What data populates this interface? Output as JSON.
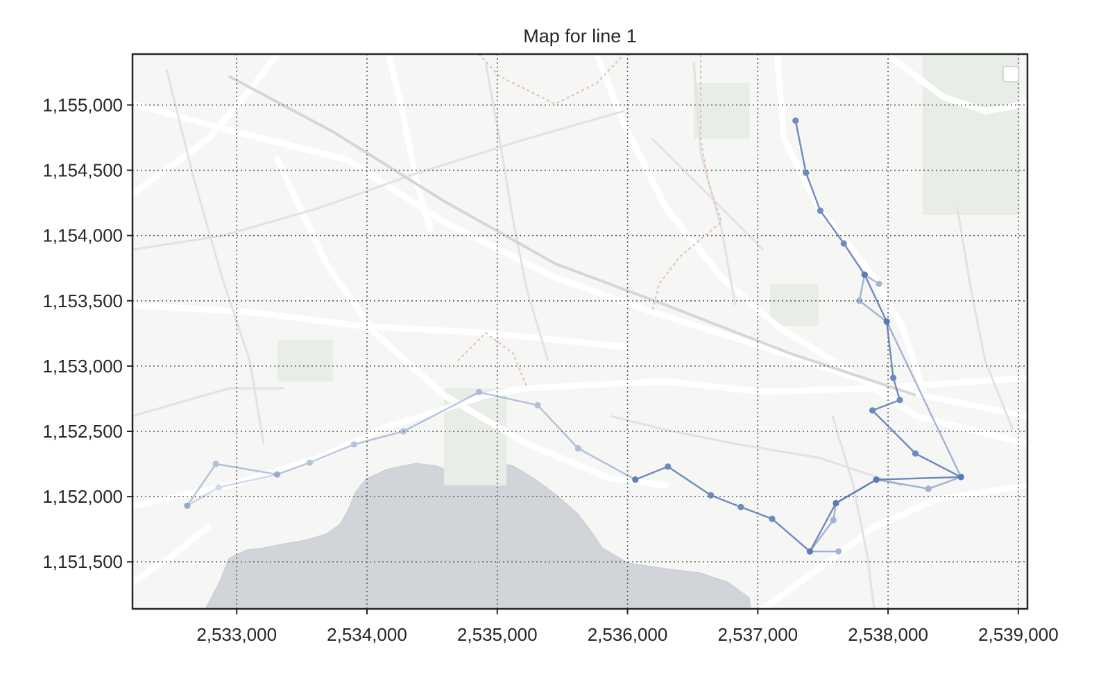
{
  "chart_data": {
    "type": "line",
    "title": "Map for line 1",
    "xlabel": "",
    "ylabel": "",
    "xlim": [
      2532200,
      2539070
    ],
    "ylim": [
      1151140,
      1155390
    ],
    "x_ticks": [
      2533000,
      2534000,
      2535000,
      2536000,
      2537000,
      2538000,
      2539000
    ],
    "x_tick_labels": [
      "2,533,000",
      "2,534,000",
      "2,535,000",
      "2,536,000",
      "2,537,000",
      "2,538,000",
      "2,539,000"
    ],
    "y_ticks": [
      1151500,
      1152000,
      1152500,
      1153000,
      1153500,
      1154000,
      1154500,
      1155000
    ],
    "y_tick_labels": [
      "1,151,500",
      "1,152,000",
      "1,152,500",
      "1,153,000",
      "1,153,500",
      "1,154,000",
      "1,154,500",
      "1,155,000"
    ],
    "grid": true,
    "legend": "top-right",
    "basemap": "street map",
    "colors": {
      "line": "#4c6fb0",
      "lake": "#d1d5da",
      "basemap": "#f5f5f4",
      "grid": "#5a5a5a"
    },
    "series": [
      {
        "alpha": 0.8,
        "x": [
          2537290,
          2537370,
          2537480,
          2537660,
          2537820,
          2537990,
          2538040,
          2538090,
          2537880,
          2538210,
          2538560,
          2537910,
          2537600,
          2537400,
          2537110,
          2536870,
          2536640,
          2536310,
          2536060
        ],
        "y": [
          1154880,
          1154480,
          1154190,
          1153940,
          1153700,
          1153340,
          1152910,
          1152740,
          1152660,
          1152330,
          1152150,
          1152130,
          1151950,
          1151580,
          1151830,
          1151920,
          1152010,
          1152230,
          1152130
        ]
      },
      {
        "alpha": 0.5,
        "x": [
          2537930,
          2537820,
          2537780,
          2537990,
          2538560,
          2538310,
          2537910,
          2537600,
          2537580,
          2537400,
          2537620
        ],
        "y": [
          1153630,
          1153700,
          1153500,
          1153340,
          1152150,
          1152060,
          1152130,
          1151950,
          1151820,
          1151580,
          1151580
        ]
      },
      {
        "alpha": 0.4,
        "x": [
          2536060,
          2535620,
          2535310,
          2534860,
          2534280,
          2533900,
          2533560,
          2533310,
          2532840,
          2532620
        ],
        "y": [
          1152130,
          1152370,
          1152700,
          1152800,
          1152500,
          1152400,
          1152260,
          1152170,
          1152250,
          1151930
        ]
      },
      {
        "alpha": 0.25,
        "x": [
          2533310,
          2532860,
          2532620
        ],
        "y": [
          1152170,
          1152070,
          1151930
        ]
      }
    ]
  }
}
